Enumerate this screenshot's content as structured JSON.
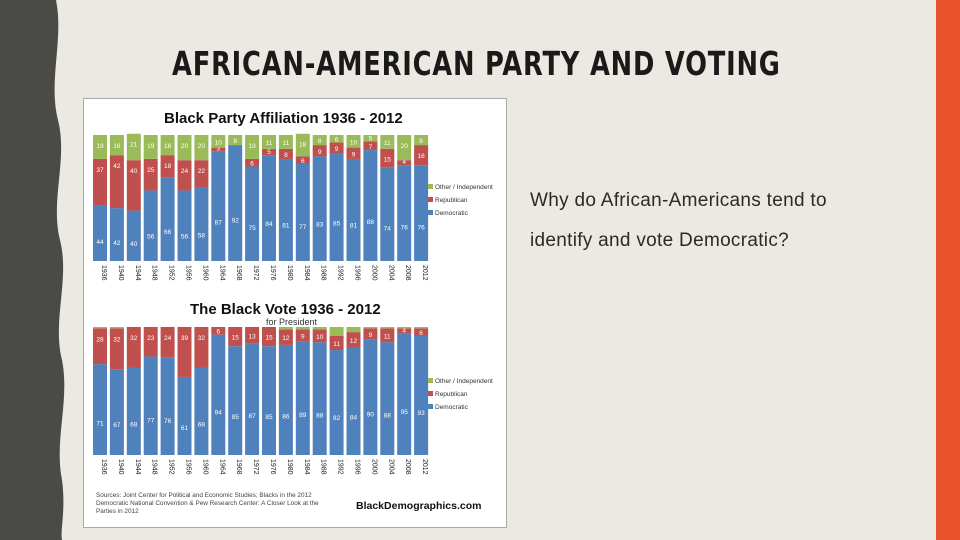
{
  "slide": {
    "title": "AFRICAN-AMERICAN PARTY AND VOTING",
    "body_line1": "Why do African-Americans tend to",
    "body_line2": "identify and vote Democratic?"
  },
  "colors": {
    "background": "#ece9e2",
    "left_band": "#4a4a46",
    "accent_bar": "#e8522a",
    "democratic": "#4f81bd",
    "republican": "#c0504d",
    "other": "#9bbb59"
  },
  "figure": {
    "source_note": "Sources: Joint Center for Political and Economic Studies; Blacks in the 2012 Democratic National Convention & Pew Research Center: A Closer Look at the Parties in 2012",
    "brand": "BlackDemographics.com"
  },
  "chart_data": [
    {
      "type": "bar",
      "stacked": true,
      "title": "Black Party Affiliation 1936 - 2012",
      "categories": [
        "1936",
        "1940",
        "1944",
        "1948",
        "1952",
        "1956",
        "1960",
        "1964",
        "1968",
        "1972",
        "1976",
        "1980",
        "1984",
        "1988",
        "1992",
        "1996",
        "2000",
        "2004",
        "2008",
        "2012"
      ],
      "series": [
        {
          "name": "Democratic",
          "values": [
            44,
            42,
            40,
            56,
            66,
            56,
            58,
            87,
            92,
            75,
            84,
            81,
            77,
            83,
            85,
            81,
            88,
            74,
            76,
            76
          ]
        },
        {
          "name": "Republican",
          "values": [
            37,
            42,
            40,
            25,
            18,
            24,
            22,
            3,
            0,
            6,
            5,
            8,
            6,
            9,
            9,
            9,
            7,
            15,
            4,
            16
          ]
        },
        {
          "name": "Other / Independent",
          "values": [
            19,
            16,
            21,
            19,
            16,
            20,
            20,
            10,
            8,
            19,
            11,
            11,
            18,
            8,
            6,
            10,
            5,
            11,
            20,
            8
          ]
        }
      ],
      "data_labels": {
        "Democratic": [
          "44",
          "42",
          "40",
          "56",
          "66",
          "56",
          "58",
          "87",
          "92",
          "75",
          "84",
          "81",
          "77",
          "83",
          "85",
          "81",
          "88",
          "74",
          "76",
          "76"
        ],
        "Republican": [
          "37",
          "42",
          "40",
          "25",
          "18",
          "24",
          "22",
          "3",
          "",
          "6",
          "5",
          "8",
          "6",
          "9",
          "9",
          "9",
          "7",
          "15",
          "4",
          "16"
        ],
        "Other / Independent": [
          "19",
          "16",
          "21",
          "19",
          "16",
          "20",
          "20",
          "10",
          "8",
          "19",
          "11",
          "11",
          "18",
          "8",
          "6",
          "10",
          "5",
          "11",
          "20",
          "8"
        ]
      },
      "ylim": [
        0,
        100
      ],
      "legend_position": "right",
      "grid": false
    },
    {
      "type": "bar",
      "stacked": true,
      "title": "The Black Vote 1936 - 2012",
      "subtitle": "for President",
      "categories": [
        "1936",
        "1940",
        "1944",
        "1948",
        "1952",
        "1956",
        "1960",
        "1964",
        "1968",
        "1972",
        "1976",
        "1980",
        "1984",
        "1988",
        "1992",
        "1996",
        "2000",
        "2004",
        "2008",
        "2012"
      ],
      "series": [
        {
          "name": "Democratic",
          "values": [
            71,
            67,
            68,
            77,
            76,
            61,
            68,
            94,
            85,
            87,
            85,
            86,
            89,
            88,
            82,
            84,
            90,
            88,
            95,
            93
          ]
        },
        {
          "name": "Republican",
          "values": [
            28,
            32,
            32,
            23,
            24,
            39,
            32,
            6,
            15,
            13,
            15,
            12,
            9,
            10,
            11,
            12,
            9,
            11,
            4,
            6
          ]
        },
        {
          "name": "Other / Independent",
          "values": [
            1,
            1,
            0,
            0,
            0,
            0,
            0,
            0,
            0,
            0,
            0,
            2,
            2,
            2,
            7,
            4,
            1,
            1,
            1,
            1
          ]
        }
      ],
      "data_labels": {
        "Democratic": [
          "71",
          "67",
          "68",
          "77",
          "76",
          "61",
          "68",
          "94",
          "85",
          "87",
          "85",
          "86",
          "89",
          "88",
          "82",
          "84",
          "90",
          "88",
          "95",
          "93"
        ],
        "Republican": [
          "28",
          "32",
          "32",
          "23",
          "24",
          "39",
          "32",
          "6",
          "15",
          "13",
          "15",
          "12",
          "9",
          "10",
          "11",
          "12",
          "9",
          "11",
          "4",
          "6"
        ]
      },
      "ylim": [
        0,
        100
      ],
      "legend_position": "right",
      "grid": false
    }
  ]
}
